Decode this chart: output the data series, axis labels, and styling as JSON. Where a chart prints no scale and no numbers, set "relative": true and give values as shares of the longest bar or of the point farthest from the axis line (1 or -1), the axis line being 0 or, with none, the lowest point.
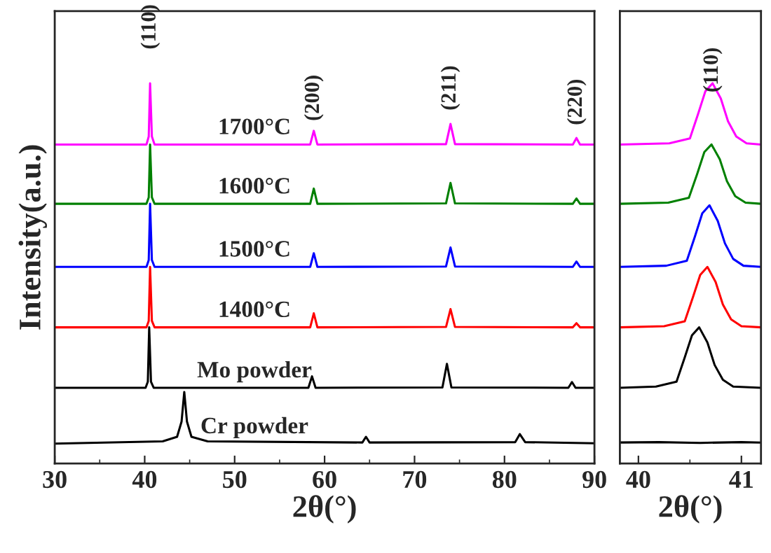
{
  "chart_data": [
    {
      "type": "line",
      "relative": true,
      "xlabel": "2θ(°)",
      "ylabel": "Intensity(a.u.)",
      "xlim": [
        30,
        90
      ],
      "xticks": [
        30,
        40,
        50,
        60,
        70,
        80,
        90
      ],
      "tick_labels": "x",
      "grid": false,
      "legend": false,
      "marker": "none",
      "line_style": "solid",
      "annotations": [
        "(110)",
        "(200)",
        "(211)",
        "(220)"
      ],
      "series": [
        {
          "name": "1700°C",
          "color": "#ff00ff",
          "x": [
            30,
            40.2,
            40.45,
            40.6,
            40.8,
            41.1,
            58.4,
            58.8,
            59.2,
            73.5,
            74.0,
            74.5,
            87.6,
            88.0,
            88.4,
            90
          ],
          "values": [
            0.839,
            0.839,
            0.86,
            1.0,
            0.86,
            0.839,
            0.839,
            0.875,
            0.839,
            0.84,
            0.893,
            0.84,
            0.839,
            0.856,
            0.839,
            0.839
          ]
        },
        {
          "name": "1600°C",
          "color": "#008000",
          "x": [
            30,
            40.2,
            40.45,
            40.6,
            40.8,
            41.1,
            58.4,
            58.8,
            59.2,
            73.5,
            74.0,
            74.5,
            87.6,
            88.0,
            88.4,
            90
          ],
          "values": [
            0.683,
            0.683,
            0.7,
            0.839,
            0.7,
            0.683,
            0.683,
            0.723,
            0.683,
            0.684,
            0.738,
            0.684,
            0.683,
            0.697,
            0.683,
            0.683
          ]
        },
        {
          "name": "1500°C",
          "color": "#0000ff",
          "x": [
            30,
            40.2,
            40.45,
            40.6,
            40.8,
            41.1,
            58.4,
            58.8,
            59.2,
            73.5,
            74.0,
            74.5,
            87.6,
            88.0,
            88.4,
            90
          ],
          "values": [
            0.517,
            0.517,
            0.535,
            0.683,
            0.535,
            0.517,
            0.517,
            0.553,
            0.517,
            0.518,
            0.568,
            0.518,
            0.517,
            0.531,
            0.517,
            0.517
          ]
        },
        {
          "name": "1400°C",
          "color": "#ff0000",
          "x": [
            30,
            40.2,
            40.45,
            40.6,
            40.8,
            41.1,
            58.4,
            58.8,
            59.2,
            73.5,
            74.0,
            74.5,
            87.6,
            88.0,
            88.4,
            90
          ],
          "values": [
            0.358,
            0.358,
            0.375,
            0.517,
            0.375,
            0.358,
            0.358,
            0.395,
            0.358,
            0.359,
            0.406,
            0.359,
            0.358,
            0.369,
            0.358,
            0.358
          ]
        },
        {
          "name": "Mo powder",
          "color": "#000000",
          "x": [
            30,
            40.1,
            40.35,
            40.5,
            40.7,
            41.0,
            58.2,
            58.6,
            59.0,
            73.1,
            73.6,
            74.1,
            87.1,
            87.5,
            87.9,
            90
          ],
          "values": [
            0.199,
            0.199,
            0.215,
            0.358,
            0.215,
            0.199,
            0.199,
            0.229,
            0.199,
            0.2,
            0.262,
            0.2,
            0.199,
            0.214,
            0.199,
            0.199
          ]
        },
        {
          "name": "Cr powder",
          "color": "#000000",
          "x": [
            30,
            42,
            43.6,
            44.1,
            44.4,
            44.7,
            45.2,
            47,
            64.2,
            64.6,
            65.0,
            81.2,
            81.7,
            82.3,
            90
          ],
          "values": [
            0.052,
            0.058,
            0.07,
            0.11,
            0.188,
            0.11,
            0.07,
            0.058,
            0.055,
            0.07,
            0.055,
            0.056,
            0.077,
            0.056,
            0.053
          ]
        }
      ]
    },
    {
      "type": "line",
      "relative": true,
      "xlabel": "2θ(°)",
      "xlim": [
        39.82,
        41.19
      ],
      "xticks": [
        40,
        41
      ],
      "tick_labels": "x",
      "grid": false,
      "legend": false,
      "marker": "none",
      "line_style": "solid",
      "annotations": [
        "(110)"
      ],
      "series": [
        {
          "color": "#ff00ff",
          "x": [
            39.82,
            40.3,
            40.5,
            40.58,
            40.65,
            40.72,
            40.8,
            40.87,
            40.95,
            41.05,
            41.19
          ],
          "values": [
            0.839,
            0.842,
            0.855,
            0.92,
            0.979,
            1.0,
            0.96,
            0.9,
            0.86,
            0.842,
            0.839
          ]
        },
        {
          "color": "#008000",
          "x": [
            39.82,
            40.29,
            40.49,
            40.57,
            40.64,
            40.71,
            40.79,
            40.86,
            40.94,
            41.04,
            41.19
          ],
          "values": [
            0.683,
            0.686,
            0.699,
            0.761,
            0.819,
            0.839,
            0.8,
            0.742,
            0.703,
            0.686,
            0.683
          ]
        },
        {
          "color": "#0000ff",
          "x": [
            39.82,
            40.27,
            40.47,
            40.55,
            40.62,
            40.69,
            40.77,
            40.84,
            40.92,
            41.02,
            41.19
          ],
          "values": [
            0.517,
            0.52,
            0.533,
            0.598,
            0.658,
            0.679,
            0.638,
            0.579,
            0.538,
            0.52,
            0.517
          ]
        },
        {
          "color": "#ff0000",
          "x": [
            39.82,
            40.25,
            40.45,
            40.53,
            40.6,
            40.67,
            40.75,
            40.82,
            40.9,
            41.0,
            41.19
          ],
          "values": [
            0.358,
            0.361,
            0.374,
            0.438,
            0.496,
            0.517,
            0.477,
            0.418,
            0.379,
            0.361,
            0.358
          ]
        },
        {
          "color": "#000000",
          "x": [
            39.82,
            40.17,
            40.37,
            40.45,
            40.52,
            40.59,
            40.67,
            40.74,
            40.82,
            40.92,
            41.19
          ],
          "values": [
            0.199,
            0.202,
            0.215,
            0.279,
            0.337,
            0.358,
            0.318,
            0.259,
            0.22,
            0.202,
            0.199
          ]
        },
        {
          "color": "#000000",
          "x": [
            39.82,
            40.2,
            40.6,
            41.0,
            41.19
          ],
          "values": [
            0.055,
            0.056,
            0.054,
            0.056,
            0.055
          ]
        }
      ]
    }
  ]
}
